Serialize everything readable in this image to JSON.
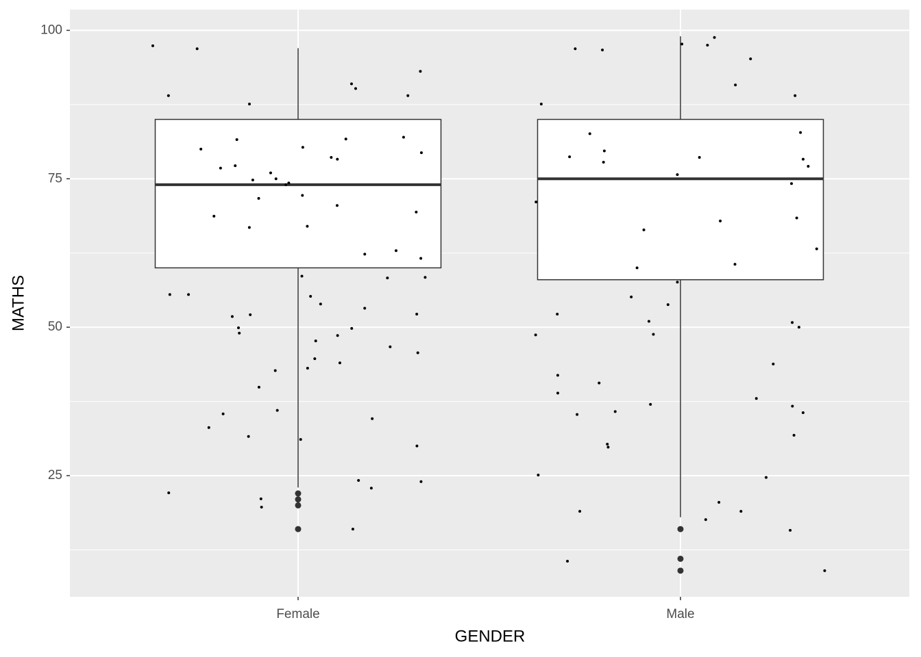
{
  "chart_data": {
    "type": "box",
    "x_label": "GENDER",
    "y_label": "MATHS",
    "categories": [
      "Female",
      "Male"
    ],
    "ylim": [
      4.6,
      103.5
    ],
    "yticks": [
      25,
      50,
      75,
      100
    ],
    "yminor": [
      12.5,
      37.5,
      62.5,
      87.5
    ],
    "grid": true,
    "boxes": [
      {
        "q1": 60,
        "median": 74,
        "q3": 85,
        "whisker_low": 23,
        "whisker_high": 97,
        "outliers": [
          22,
          21,
          20,
          16
        ]
      },
      {
        "q1": 58,
        "median": 75,
        "q3": 85,
        "whisker_low": 18,
        "whisker_high": 99,
        "outliers": [
          16,
          11,
          9
        ]
      }
    ],
    "points": [
      [
        97.4,
        93.1,
        81.6,
        68.7,
        62.3,
        43.1,
        31.6,
        22.9,
        34.6,
        55.2,
        49.8,
        48.6,
        46.7,
        35.4,
        19.7,
        24.2,
        90.2,
        89,
        91,
        74.3,
        61.6,
        58.3,
        55.5,
        58.6,
        24,
        16,
        44,
        53.9,
        45.7,
        52.2,
        21.1,
        52.1,
        62.9,
        66.8,
        96.9,
        49,
        36,
        49.9,
        58.4,
        44.7,
        53.2,
        89,
        55.5,
        51.8,
        47.7,
        31.1,
        42.7,
        33.1,
        30,
        22.1,
        39.9,
        74.8,
        81.7,
        79.4,
        72.2,
        80,
        76,
        77.2,
        71.7,
        75,
        87.6,
        67,
        78.6,
        76.8,
        69.4,
        74,
        82,
        78.3,
        70.5,
        80.3
      ],
      [
        97.7,
        90.8,
        77.1,
        37,
        19,
        29.8,
        17.6,
        60,
        55.1,
        51,
        24.7,
        15.8,
        10.6,
        43.8,
        41.9,
        48.8,
        19,
        38.9,
        9,
        40.6,
        20.5,
        35.3,
        53.8,
        97.5,
        96.9,
        35.6,
        50.8,
        31.8,
        36.7,
        50,
        38,
        35.8,
        25.1,
        30.3,
        52.2,
        48.7,
        98.8,
        96.7,
        95.2,
        57.6,
        60.6,
        79.7,
        74.2,
        77.8,
        66.4,
        89,
        78.7,
        75.7,
        71.1,
        82.8,
        67.9,
        78.3,
        87.6,
        68.4,
        82.6,
        63.2,
        78.6
      ]
    ]
  }
}
